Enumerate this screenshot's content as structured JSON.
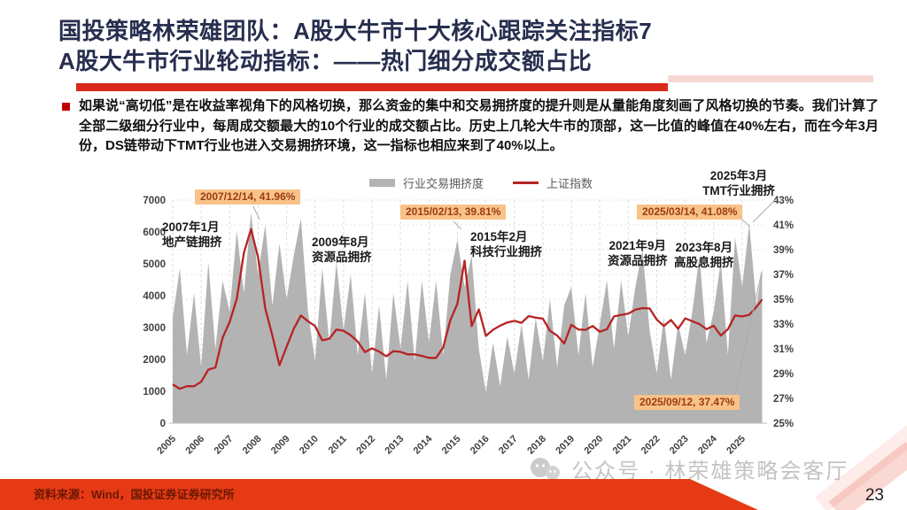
{
  "slide": {
    "title_line1": "国投策略林荣雄团队：A股大牛市十大核心跟踪关注指标7",
    "title_line2": "A股大牛市行业轮动指标：——热门细分成交额占比",
    "bullet_text": "如果说“高切低”是在收益率视角下的风格切换，那么资金的集中和交易拥挤度的提升则是从量能角度刻画了风格切换的节奏。我们计算了全部二级细分行业中，每周成交额最大的10个行业的成交额占比。历史上几轮大牛市的顶部，这一比值的峰值在40%左右，而在今年3月份，DS链带动下TMT行业也进入交易拥挤环境，这一指标也相应来到了40%以上。",
    "source_text": "资料来源：Wind，国投证券证券研究所",
    "watermark_text": "公众号 · 林荣雄策略会客厅",
    "page_number": "23",
    "colors": {
      "title": "#272e4e",
      "underline": "#d9291a",
      "area_gray": "#b3b3b3",
      "index_red": "#b62425",
      "callout_bg": "#f8c289",
      "callout_text": "#9c3c12",
      "bottom_bar": "#e53a14"
    }
  },
  "chart_data": {
    "type": "area+line",
    "legend": [
      "行业交易拥挤度",
      "上证指数"
    ],
    "x_start": 2005,
    "x_step": 0.25,
    "x_last": 2025.7,
    "x_max": 2025.75,
    "x_ticks": [
      2005,
      2006,
      2007,
      2008,
      2009,
      2010,
      2011,
      2012,
      2013,
      2014,
      2015,
      2016,
      2017,
      2018,
      2019,
      2020,
      2021,
      2022,
      2023,
      2024,
      2025
    ],
    "left_axis": {
      "min": 0,
      "max": 7000,
      "ticks": [
        0,
        1000,
        2000,
        3000,
        4000,
        5000,
        6000,
        7000
      ]
    },
    "right_axis": {
      "min": 25,
      "max": 43,
      "ticks": [
        "25%",
        "27%",
        "29%",
        "31%",
        "33%",
        "35%",
        "37%",
        "39%",
        "41%",
        "43%"
      ]
    },
    "series": [
      {
        "name": "行业交易拥挤度",
        "axis": "right",
        "type": "area",
        "color": "#b3b3b3",
        "values": [
          33.5,
          37.5,
          30.5,
          35.5,
          29.5,
          38,
          31,
          36.5,
          34,
          40.5,
          35.5,
          41.96,
          37,
          41,
          34.5,
          39.5,
          35,
          38.5,
          41.5,
          34,
          30,
          37.5,
          31.5,
          38,
          32.5,
          37,
          30.5,
          35.5,
          29,
          34.5,
          28.5,
          35.5,
          31,
          36.5,
          30,
          36.5,
          31.5,
          36.5,
          30.5,
          37,
          39.81,
          36,
          38.5,
          31,
          27.5,
          31.5,
          28,
          32,
          29,
          33,
          28.5,
          33.5,
          30,
          35,
          29.5,
          34.5,
          36,
          30.5,
          35.5,
          29.5,
          33,
          36.5,
          31,
          36.5,
          32,
          36,
          39,
          32.5,
          29,
          33.5,
          28.5,
          33,
          30.5,
          34,
          38.5,
          31.5,
          34,
          38,
          30.5,
          40,
          36,
          41.08,
          34.5,
          37.47
        ]
      },
      {
        "name": "上证指数",
        "axis": "left",
        "type": "line",
        "color": "#b62425",
        "values": [
          1220,
          1080,
          1160,
          1160,
          1300,
          1680,
          1750,
          2680,
          3180,
          3900,
          5350,
          6090,
          5200,
          3600,
          2750,
          1820,
          2400,
          2960,
          3380,
          3200,
          3050,
          2600,
          2650,
          2940,
          2900,
          2760,
          2560,
          2230,
          2350,
          2250,
          2100,
          2260,
          2240,
          2160,
          2160,
          2110,
          2050,
          2050,
          2380,
          3230,
          3750,
          5100,
          3050,
          3570,
          2740,
          2930,
          3060,
          3160,
          3210,
          3150,
          3360,
          3310,
          3280,
          2900,
          2750,
          2500,
          3090,
          2940,
          2930,
          3050,
          2870,
          2950,
          3350,
          3400,
          3440,
          3560,
          3610,
          3600,
          3250,
          3050,
          3240,
          2960,
          3290,
          3200,
          3110,
          2950,
          3060,
          2750,
          2950,
          3380,
          3350,
          3400,
          3650,
          3880
        ]
      }
    ],
    "callouts": [
      {
        "text": "2007/12/14, 41.96%"
      },
      {
        "text": "2015/02/13, 39.81%"
      },
      {
        "text": "2025/03/14, 41.08%"
      },
      {
        "text": "2025/09/12, 37.47%"
      }
    ],
    "event_labels": [
      {
        "l1": "2007年1月",
        "l2": "地产链拥挤"
      },
      {
        "l1": "2009年8月",
        "l2": "资源品拥挤"
      },
      {
        "l1": "2015年2月",
        "l2": "科技行业拥挤"
      },
      {
        "l1": "2021年9月",
        "l2": "资源品拥挤"
      },
      {
        "l1": "2023年8月",
        "l2": "高股息拥挤"
      },
      {
        "l1": "2025年3月",
        "l2": "TMT行业拥挤"
      }
    ]
  }
}
